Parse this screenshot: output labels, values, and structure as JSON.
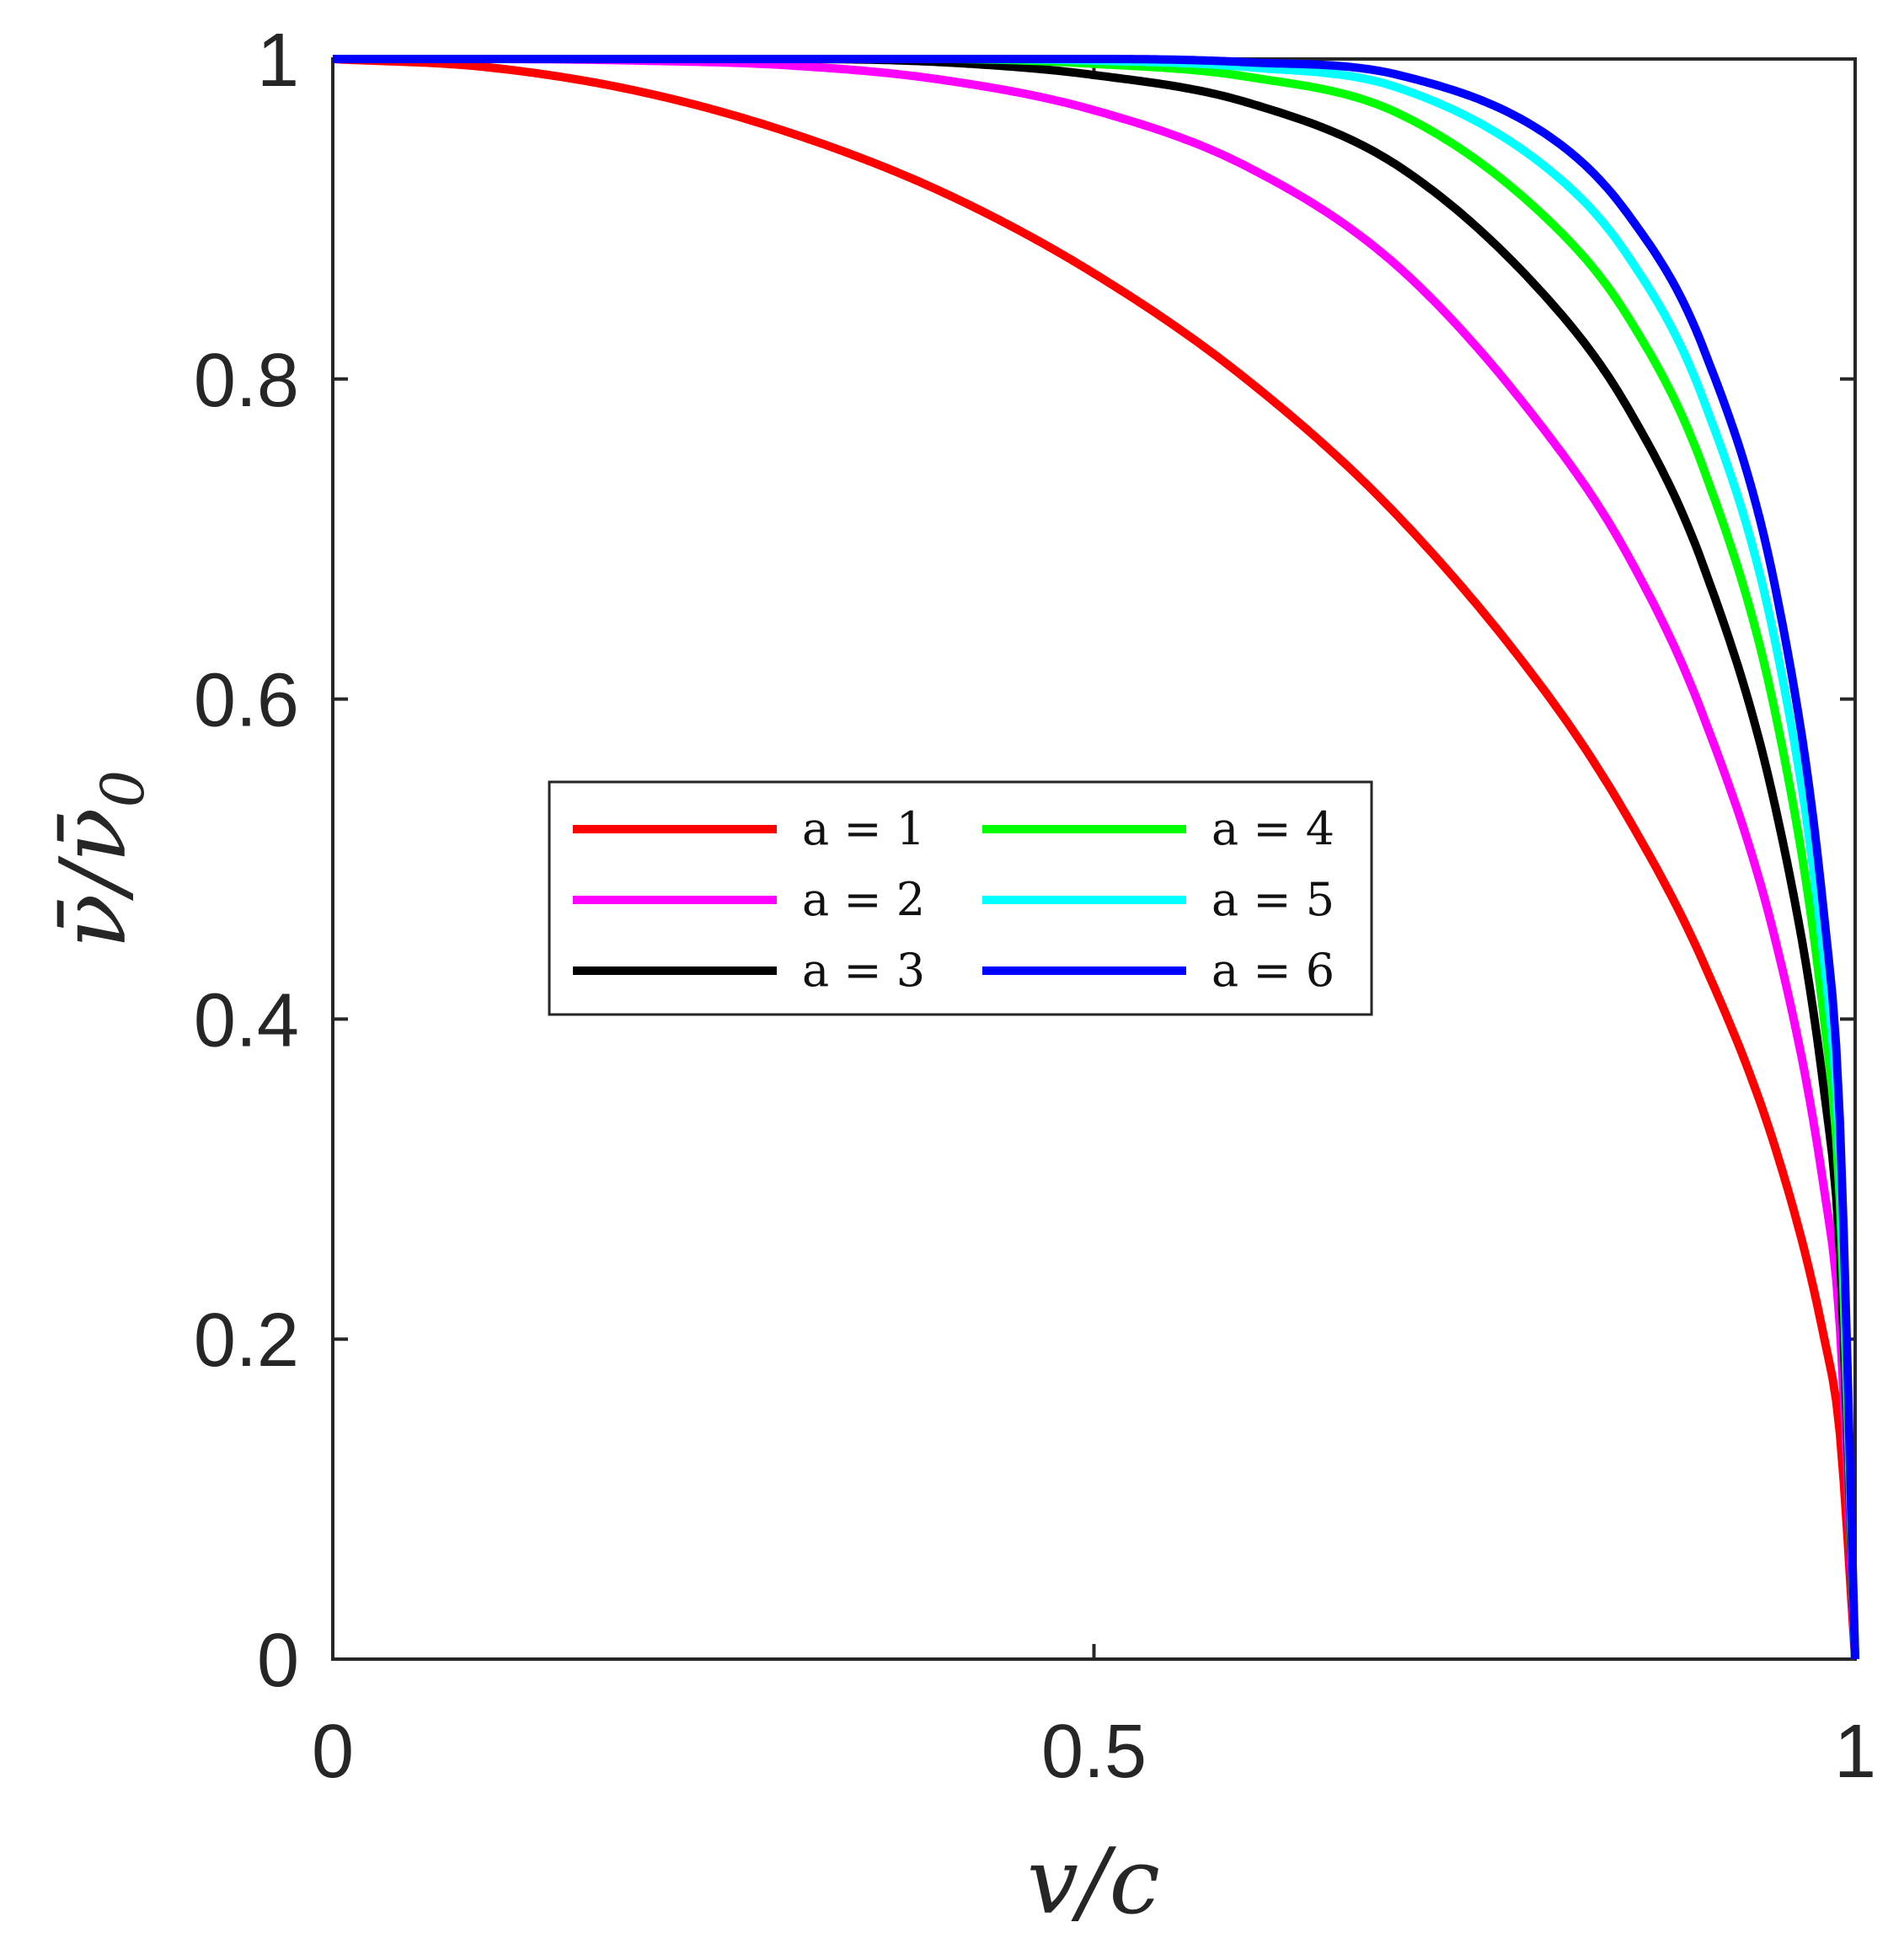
{
  "chart_data": {
    "type": "line",
    "xlabel": "v/c",
    "ylabel": "ν̄/ν̄₀",
    "ylabel_main": "ν̄/ν̄",
    "ylabel_sub": "0",
    "xlim": [
      0,
      1
    ],
    "ylim": [
      0,
      1
    ],
    "xticks": [
      0,
      0.5,
      1
    ],
    "xtick_labels": [
      "0",
      "0.5",
      "1"
    ],
    "yticks": [
      0,
      0.2,
      0.4,
      0.6,
      0.8,
      1
    ],
    "ytick_labels": [
      "0",
      "0.2",
      "0.4",
      "0.6",
      "0.8",
      "1"
    ],
    "grid": false,
    "legend_position": "center-left",
    "legend_columns": 2,
    "x": [
      0,
      0.1,
      0.2,
      0.3,
      0.4,
      0.5,
      0.6,
      0.7,
      0.8,
      0.85,
      0.9,
      0.95,
      0.98,
      0.99,
      1
    ],
    "series": [
      {
        "name": "a = 1",
        "color": "#ff0000",
        "values": [
          1,
          0.995,
          0.98,
          0.954,
          0.917,
          0.866,
          0.8,
          0.714,
          0.6,
          0.527,
          0.436,
          0.312,
          0.199,
          0.141,
          0
        ]
      },
      {
        "name": "a = 2",
        "color": "#ff00ff",
        "values": [
          1,
          1,
          0.999,
          0.996,
          0.987,
          0.968,
          0.933,
          0.87,
          0.763,
          0.691,
          0.59,
          0.44,
          0.291,
          0.208,
          0
        ]
      },
      {
        "name": "a = 3",
        "color": "#000000",
        "values": [
          1,
          1,
          1,
          1,
          0.998,
          0.99,
          0.973,
          0.933,
          0.848,
          0.783,
          0.684,
          0.522,
          0.352,
          0.253,
          0
        ]
      },
      {
        "name": "a = 4",
        "color": "#00ff00",
        "values": [
          1,
          1,
          1,
          1,
          1,
          0.997,
          0.989,
          0.966,
          0.898,
          0.84,
          0.745,
          0.58,
          0.396,
          0.286,
          0
        ]
      },
      {
        "name": "a = 5",
        "color": "#00ffff",
        "values": [
          1,
          1,
          1,
          1,
          1,
          0.999,
          0.995,
          0.982,
          0.93,
          0.878,
          0.788,
          0.624,
          0.432,
          0.313,
          0
        ]
      },
      {
        "name": "a = 6",
        "color": "#0000ff",
        "values": [
          1,
          1,
          1,
          1,
          1,
          1,
          0.998,
          0.99,
          0.951,
          0.904,
          0.82,
          0.658,
          0.461,
          0.336,
          0
        ]
      }
    ]
  }
}
